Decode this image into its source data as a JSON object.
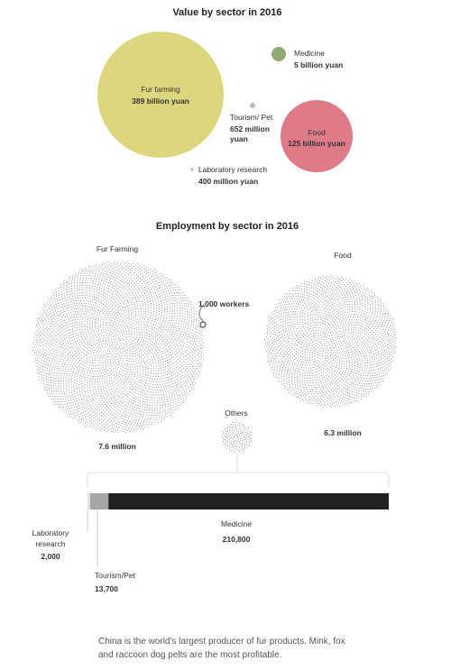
{
  "chart_data": [
    {
      "type": "bubble",
      "title": "Value by sector in 2016",
      "unit": "yuan",
      "items": [
        {
          "name": "Fur farming",
          "value_label": "389 billion yuan",
          "value": 389000000000,
          "color": "#dcd77e"
        },
        {
          "name": "Medicine",
          "value_label": "5 billion yuan",
          "value": 5000000000,
          "color": "#8faa6e"
        },
        {
          "name": "Tourism/ Pet",
          "value_label": "652 million yuan",
          "value_lines": [
            "652 million",
            "yuan"
          ],
          "value": 652000000,
          "color": "#bbbbbb"
        },
        {
          "name": "Food",
          "value_label": "125 billion yuan",
          "value": 125000000000,
          "color": "#df7a87"
        },
        {
          "name": "Laboratory research",
          "value_label": "400 million yuan",
          "value": 400000000,
          "color": "#cccccc"
        }
      ]
    },
    {
      "type": "bubble",
      "title": "Employment by sector in 2016",
      "unit": "workers",
      "dot_legend": "1,000 workers",
      "items": [
        {
          "name": "Fur Farming",
          "value_label": "7.6 million",
          "value": 7600000
        },
        {
          "name": "Food",
          "value_label": "6.3 million",
          "value": 6300000
        },
        {
          "name": "Others",
          "value_label": "",
          "value": null
        }
      ],
      "others_breakdown": {
        "type": "stacked_bar",
        "items": [
          {
            "name": "Laboratory research",
            "name_lines": [
              "Laboratory",
              "research"
            ],
            "value_label": "2,000",
            "value": 2000,
            "color": "#e4e4e4"
          },
          {
            "name": "Tourism/Pet",
            "value_label": "13,700",
            "value": 13700,
            "color": "#a6a6a6"
          },
          {
            "name": "Medicine",
            "value_label": "210,800",
            "value": 210800,
            "color": "#222222"
          }
        ]
      }
    }
  ],
  "caption": "China is the world's largest producer of fur products. Mink, fox and raccoon dog pelts are the most profitable."
}
